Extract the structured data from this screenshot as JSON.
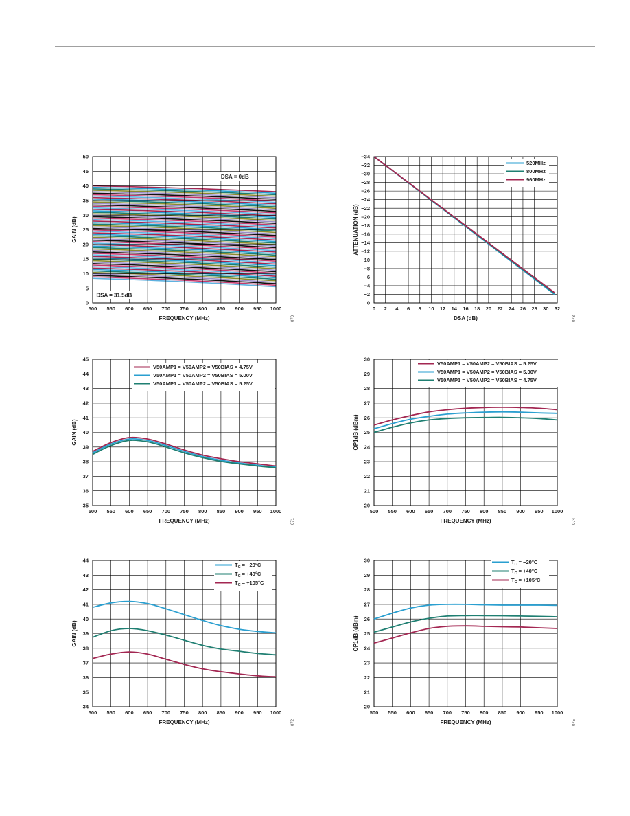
{
  "colors": {
    "cyan": "#2a9fd0",
    "teal": "#1f7f72",
    "crimson": "#a32752",
    "grid": "#000000"
  },
  "chart_data": [
    {
      "type": "line",
      "xlabel": "FREQUENCY (MHz)",
      "ylabel": "GAIN (dB)",
      "xlim": [
        500,
        1000
      ],
      "ylim": [
        0,
        50
      ],
      "xticks": [
        "500",
        "550",
        "600",
        "650",
        "700",
        "750",
        "800",
        "850",
        "900",
        "950",
        "1000"
      ],
      "yticks": [
        "0",
        "5",
        "10",
        "15",
        "20",
        "25",
        "30",
        "35",
        "40",
        "45",
        "50"
      ],
      "annotations": [
        {
          "text": "DSA = 0dB",
          "x": 850,
          "y": 42.5
        },
        {
          "text": "DSA = 31.5dB",
          "x": 510,
          "y": 2
        }
      ],
      "figure_id": "070",
      "family": {
        "steps": 64,
        "top_start": 40,
        "top_end": 38,
        "bottom_start": 8.4,
        "bottom_end": 5.5
      },
      "series": []
    },
    {
      "type": "line",
      "xlabel": "DSA (dB)",
      "ylabel": "ATTENUATION (dB)",
      "xlim": [
        0,
        32
      ],
      "ylim": [
        -34,
        0
      ],
      "xticks": [
        "0",
        "2",
        "4",
        "6",
        "8",
        "10",
        "12",
        "14",
        "16",
        "18",
        "20",
        "22",
        "24",
        "26",
        "28",
        "30",
        "32"
      ],
      "yticks": [
        "0",
        "−2",
        "−4",
        "−6",
        "−8",
        "−10",
        "−12",
        "−14",
        "−16",
        "−18",
        "−20",
        "−22",
        "−24",
        "−26",
        "−28",
        "−30",
        "−32",
        "−34"
      ],
      "legend_position": "top-right",
      "figure_id": "073",
      "series": [
        {
          "name": "520MHz",
          "color": "#2a9fd0",
          "x": [
            0,
            31.5
          ],
          "y": [
            0,
            -32.0
          ]
        },
        {
          "name": "800MHz",
          "color": "#1f7f72",
          "x": [
            0,
            31.5
          ],
          "y": [
            0,
            -31.8
          ]
        },
        {
          "name": "960MHz",
          "color": "#a32752",
          "x": [
            0,
            31.5
          ],
          "y": [
            0,
            -31.6
          ]
        }
      ]
    },
    {
      "type": "line",
      "xlabel": "FREQUENCY (MHz)",
      "ylabel": "GAIN (dB)",
      "xlim": [
        500,
        1000
      ],
      "ylim": [
        35,
        45
      ],
      "xticks": [
        "500",
        "550",
        "600",
        "650",
        "700",
        "750",
        "800",
        "850",
        "900",
        "950",
        "1000"
      ],
      "yticks": [
        "35",
        "36",
        "37",
        "38",
        "39",
        "40",
        "41",
        "42",
        "43",
        "44",
        "45"
      ],
      "legend_position": "top-right",
      "figure_id": "071",
      "series": [
        {
          "name": "V50AMP1 = V50AMP2 = V50BIAS = 4.75V",
          "color": "#a32752",
          "x": [
            500,
            550,
            600,
            650,
            700,
            750,
            800,
            850,
            900,
            950,
            1000
          ],
          "y": [
            38.7,
            39.3,
            39.65,
            39.55,
            39.2,
            38.8,
            38.45,
            38.2,
            38.0,
            37.85,
            37.7
          ]
        },
        {
          "name": "V50AMP1 = V50AMP2 = V50BIAS = 5.00V",
          "color": "#2a9fd0",
          "x": [
            500,
            550,
            600,
            650,
            700,
            750,
            800,
            850,
            900,
            950,
            1000
          ],
          "y": [
            38.6,
            39.2,
            39.55,
            39.45,
            39.1,
            38.7,
            38.35,
            38.1,
            37.9,
            37.75,
            37.62
          ]
        },
        {
          "name": "V50AMP1 = V50AMP2 = V50BIAS = 5.25V",
          "color": "#1f7f72",
          "x": [
            500,
            550,
            600,
            650,
            700,
            750,
            800,
            850,
            900,
            950,
            1000
          ],
          "y": [
            38.5,
            39.1,
            39.45,
            39.35,
            39.0,
            38.6,
            38.27,
            38.02,
            37.85,
            37.7,
            37.58
          ]
        }
      ]
    },
    {
      "type": "line",
      "xlabel": "FREQUENCY (MHz)",
      "ylabel": "OP1dB (dBm)",
      "xlim": [
        500,
        1000
      ],
      "ylim": [
        20,
        30
      ],
      "xticks": [
        "500",
        "550",
        "600",
        "650",
        "700",
        "750",
        "800",
        "850",
        "900",
        "950",
        "1000"
      ],
      "yticks": [
        "20",
        "21",
        "22",
        "23",
        "24",
        "25",
        "26",
        "27",
        "28",
        "29",
        "30"
      ],
      "legend_position": "top-right",
      "figure_id": "074",
      "series": [
        {
          "name": "V50AMP1 = V50AMP2 = V50BIAS = 5.25V",
          "color": "#a32752",
          "x": [
            500,
            550,
            600,
            650,
            700,
            750,
            800,
            850,
            900,
            950,
            1000
          ],
          "y": [
            25.5,
            25.85,
            26.15,
            26.4,
            26.55,
            26.65,
            26.7,
            26.72,
            26.7,
            26.65,
            26.55
          ]
        },
        {
          "name": "V50AMP1 = V50AMP2 = V50BIAS = 5.00V",
          "color": "#2a9fd0",
          "x": [
            500,
            550,
            600,
            650,
            700,
            750,
            800,
            850,
            900,
            950,
            1000
          ],
          "y": [
            25.25,
            25.6,
            25.9,
            26.1,
            26.25,
            26.33,
            26.38,
            26.4,
            26.38,
            26.33,
            26.3
          ]
        },
        {
          "name": "V50AMP1 = V50AMP2 = V50BIAS = 4.75V",
          "color": "#1f7f72",
          "x": [
            500,
            550,
            600,
            650,
            700,
            750,
            800,
            850,
            900,
            950,
            1000
          ],
          "y": [
            25.0,
            25.35,
            25.65,
            25.85,
            25.95,
            26.0,
            26.02,
            26.03,
            26.0,
            25.95,
            25.85
          ]
        }
      ]
    },
    {
      "type": "line",
      "xlabel": "FREQUENCY (MHz)",
      "ylabel": "GAIN (dB)",
      "xlim": [
        500,
        1000
      ],
      "ylim": [
        34,
        44
      ],
      "xticks": [
        "500",
        "550",
        "600",
        "650",
        "700",
        "750",
        "800",
        "850",
        "900",
        "950",
        "1000"
      ],
      "yticks": [
        "34",
        "35",
        "36",
        "37",
        "38",
        "39",
        "40",
        "41",
        "42",
        "43",
        "44"
      ],
      "legend_position": "top-right",
      "figure_id": "072",
      "series": [
        {
          "name": "T",
          "sub": "C",
          "suffix": " = −20°C",
          "color": "#2a9fd0",
          "x": [
            500,
            550,
            600,
            650,
            700,
            750,
            800,
            850,
            900,
            950,
            1000
          ],
          "y": [
            40.8,
            41.1,
            41.2,
            41.05,
            40.7,
            40.3,
            39.9,
            39.55,
            39.3,
            39.15,
            39.05
          ]
        },
        {
          "name": "T",
          "sub": "C",
          "suffix": " = +40°C",
          "color": "#1f7f72",
          "x": [
            500,
            550,
            600,
            650,
            700,
            750,
            800,
            850,
            900,
            950,
            1000
          ],
          "y": [
            38.75,
            39.2,
            39.35,
            39.2,
            38.9,
            38.55,
            38.2,
            37.95,
            37.8,
            37.65,
            37.55
          ]
        },
        {
          "name": "T",
          "sub": "C",
          "suffix": " = +105°C",
          "color": "#a32752",
          "x": [
            500,
            550,
            600,
            650,
            700,
            750,
            800,
            850,
            900,
            950,
            1000
          ],
          "y": [
            37.3,
            37.6,
            37.75,
            37.6,
            37.25,
            36.9,
            36.6,
            36.4,
            36.25,
            36.12,
            36.05
          ]
        }
      ]
    },
    {
      "type": "line",
      "xlabel": "FREQUENCY (MHz)",
      "ylabel": "OP1dB (dBm)",
      "xlim": [
        500,
        1000
      ],
      "ylim": [
        20,
        30
      ],
      "xticks": [
        "500",
        "550",
        "600",
        "650",
        "700",
        "750",
        "800",
        "850",
        "900",
        "950",
        "1000"
      ],
      "yticks": [
        "20",
        "21",
        "22",
        "23",
        "24",
        "25",
        "26",
        "27",
        "28",
        "29",
        "30"
      ],
      "legend_position": "top-right",
      "figure_id": "075",
      "series": [
        {
          "name": "T",
          "sub": "C",
          "suffix": " = −20°C",
          "color": "#2a9fd0",
          "x": [
            500,
            550,
            600,
            650,
            700,
            750,
            800,
            850,
            900,
            950,
            1000
          ],
          "y": [
            26.0,
            26.4,
            26.75,
            26.95,
            27.0,
            27.0,
            26.97,
            26.95,
            26.95,
            26.95,
            26.93
          ]
        },
        {
          "name": "T",
          "sub": "C",
          "suffix": " = +40°C",
          "color": "#1f7f72",
          "x": [
            500,
            550,
            600,
            650,
            700,
            750,
            800,
            850,
            900,
            950,
            1000
          ],
          "y": [
            25.1,
            25.45,
            25.8,
            26.05,
            26.2,
            26.23,
            26.23,
            26.22,
            26.2,
            26.18,
            26.15
          ]
        },
        {
          "name": "T",
          "sub": "C",
          "suffix": " = +105°C",
          "color": "#a32752",
          "x": [
            500,
            550,
            600,
            650,
            700,
            750,
            800,
            850,
            900,
            950,
            1000
          ],
          "y": [
            24.35,
            24.7,
            25.05,
            25.35,
            25.5,
            25.53,
            25.5,
            25.47,
            25.45,
            25.4,
            25.35
          ]
        }
      ]
    }
  ]
}
